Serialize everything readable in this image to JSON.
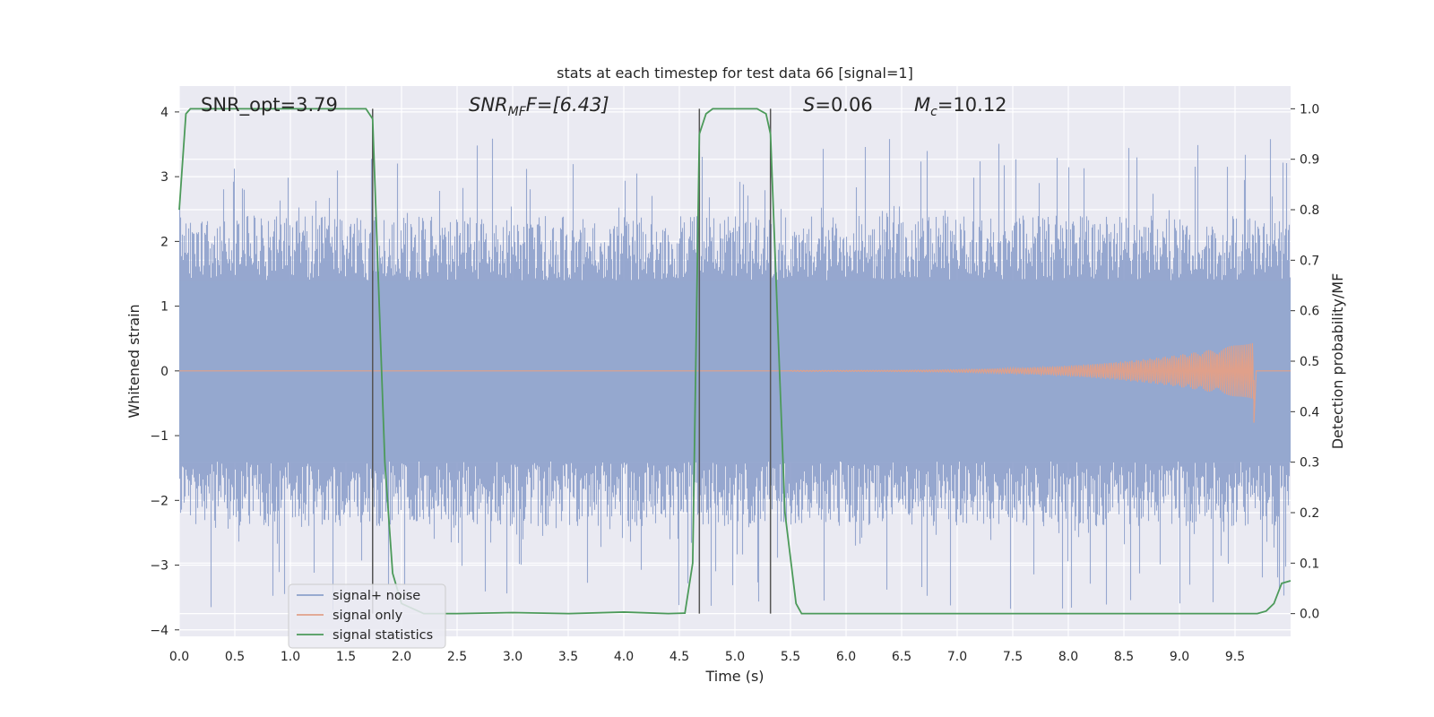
{
  "chart_data": {
    "type": "line",
    "title": "stats at each timestep for test data 66 [signal=1]",
    "xlabel": "Time (s)",
    "ylabel_left": "Whitened strain",
    "ylabel_right": "Detection probability/MF",
    "xlim": [
      0,
      10
    ],
    "ylim_left": [
      -4.1,
      4.4
    ],
    "ylim_right": [
      -0.045,
      1.045
    ],
    "x_ticks": [
      "0.0",
      "0.5",
      "1.0",
      "1.5",
      "2.0",
      "2.5",
      "3.0",
      "3.5",
      "4.0",
      "4.5",
      "5.0",
      "5.5",
      "6.0",
      "6.5",
      "7.0",
      "7.5",
      "8.0",
      "8.5",
      "9.0",
      "9.5"
    ],
    "y_left_ticks": [
      "4",
      "3",
      "2",
      "1",
      "0",
      "−1",
      "−2",
      "−3",
      "−4"
    ],
    "y_right_ticks": [
      "1.0",
      "0.9",
      "0.8",
      "0.7",
      "0.6",
      "0.5",
      "0.4",
      "0.3",
      "0.2",
      "0.1",
      "0.0"
    ],
    "grid": true,
    "legend_position": "lower-left",
    "annotations": {
      "snr_opt": "SNR_opt=3.79",
      "snr_mf_base": "SNR",
      "snr_mf_sub": "MF",
      "snr_mf_value": "F=[6.43]",
      "s_label": "S",
      "s_value": "=0.06",
      "mc_base": "M",
      "mc_sub": "c",
      "mc_value": "=10.12"
    },
    "vertical_lines_x": [
      1.74,
      4.68,
      5.32
    ],
    "series": [
      {
        "name": "signal+ noise",
        "color": "#8da0cb",
        "axis": "left",
        "description_values": "white noise, amplitude ~±2.2 typical, peaks to ~3.6 / -3.8, 10 s duration"
      },
      {
        "name": "signal only",
        "color": "#e0a08a",
        "axis": "left",
        "chirp": {
          "start": 5.5,
          "end": 9.67,
          "peak_amplitude": 0.45
        }
      },
      {
        "name": "signal statistics",
        "color": "#4c9a5a",
        "axis": "right",
        "x": [
          0.0,
          0.06,
          0.1,
          0.5,
          1.0,
          1.5,
          1.68,
          1.74,
          1.85,
          1.92,
          2.0,
          2.2,
          2.5,
          3.0,
          3.5,
          4.0,
          4.4,
          4.55,
          4.62,
          4.68,
          4.74,
          4.8,
          5.0,
          5.2,
          5.28,
          5.32,
          5.45,
          5.55,
          5.6,
          6.0,
          7.0,
          8.0,
          9.0,
          9.5,
          9.7,
          9.78,
          9.85,
          9.92,
          10.0
        ],
        "y": [
          0.8,
          0.99,
          1.0,
          1.0,
          1.0,
          1.0,
          1.0,
          0.98,
          0.3,
          0.08,
          0.02,
          0.0,
          0.0,
          0.002,
          0.0,
          0.003,
          0.0,
          0.001,
          0.1,
          0.95,
          0.99,
          1.0,
          1.0,
          1.0,
          0.99,
          0.95,
          0.2,
          0.02,
          0.0,
          0.0,
          0.0,
          0.0,
          0.0,
          0.0,
          0.0,
          0.005,
          0.02,
          0.06,
          0.065
        ]
      }
    ]
  }
}
